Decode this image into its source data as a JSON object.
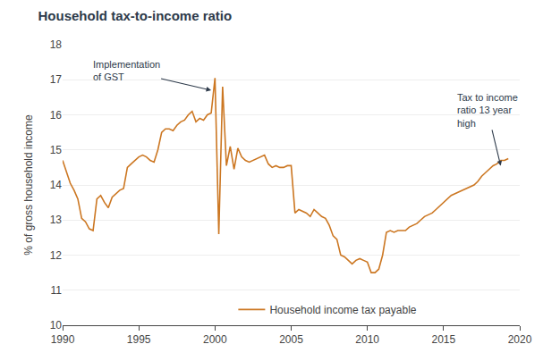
{
  "chart_data": {
    "type": "line",
    "title": "Household tax-to-income ratio",
    "ylabel": "% of gross household income",
    "background_color": "#ffffff",
    "title_color": "#2d3a4a",
    "annotation_color": "#2d3a4a",
    "grid": true,
    "legend": "lower center",
    "xlim": [
      1990,
      2020
    ],
    "ylim": [
      10,
      18
    ],
    "xticks": [
      1990,
      1995,
      2000,
      2005,
      2010,
      2015,
      2020
    ],
    "yticks": [
      10,
      11,
      12,
      13,
      14,
      15,
      16,
      17,
      18
    ],
    "annotations": [
      {
        "text": "Implementation\nof GST",
        "x": 1999.75,
        "y": 16.7
      },
      {
        "text": "Tax to income\nratio 13 year\nhigh",
        "x": 2018.75,
        "y": 14.55
      }
    ],
    "x": [
      1990.0,
      1990.25,
      1990.5,
      1990.75,
      1991.0,
      1991.25,
      1991.5,
      1991.75,
      1992.0,
      1992.25,
      1992.5,
      1992.75,
      1993.0,
      1993.25,
      1993.5,
      1993.75,
      1994.0,
      1994.25,
      1994.5,
      1994.75,
      1995.0,
      1995.25,
      1995.5,
      1995.75,
      1996.0,
      1996.25,
      1996.5,
      1996.75,
      1997.0,
      1997.25,
      1997.5,
      1997.75,
      1998.0,
      1998.25,
      1998.5,
      1998.75,
      1999.0,
      1999.25,
      1999.5,
      1999.75,
      2000.0,
      2000.25,
      2000.5,
      2000.75,
      2001.0,
      2001.25,
      2001.5,
      2001.75,
      2002.0,
      2002.25,
      2002.5,
      2002.75,
      2003.0,
      2003.25,
      2003.5,
      2003.75,
      2004.0,
      2004.25,
      2004.5,
      2004.75,
      2005.0,
      2005.25,
      2005.5,
      2005.75,
      2006.0,
      2006.25,
      2006.5,
      2006.75,
      2007.0,
      2007.25,
      2007.5,
      2007.75,
      2008.0,
      2008.25,
      2008.5,
      2008.75,
      2009.0,
      2009.25,
      2009.5,
      2009.75,
      2010.0,
      2010.25,
      2010.5,
      2010.75,
      2011.0,
      2011.25,
      2011.5,
      2011.75,
      2012.0,
      2012.25,
      2012.5,
      2012.75,
      2013.0,
      2013.25,
      2013.5,
      2013.75,
      2014.0,
      2014.25,
      2014.5,
      2014.75,
      2015.0,
      2015.25,
      2015.5,
      2015.75,
      2016.0,
      2016.25,
      2016.5,
      2016.75,
      2017.0,
      2017.25,
      2017.5,
      2017.75,
      2018.0,
      2018.25,
      2018.5,
      2018.75,
      2019.0,
      2019.25
    ],
    "series": [
      {
        "name": "Household income tax payable",
        "color": "#CC7722",
        "values": [
          14.7,
          14.35,
          14.05,
          13.85,
          13.6,
          13.05,
          12.95,
          12.75,
          12.7,
          13.6,
          13.7,
          13.5,
          13.35,
          13.65,
          13.75,
          13.85,
          13.9,
          14.5,
          14.6,
          14.7,
          14.8,
          14.85,
          14.8,
          14.7,
          14.65,
          15.0,
          15.5,
          15.6,
          15.6,
          15.55,
          15.7,
          15.8,
          15.85,
          16.0,
          16.1,
          15.8,
          15.9,
          15.85,
          16.0,
          16.05,
          17.05,
          12.6,
          16.8,
          14.55,
          15.1,
          14.45,
          15.05,
          14.8,
          14.7,
          14.65,
          14.7,
          14.75,
          14.8,
          14.85,
          14.6,
          14.5,
          14.55,
          14.5,
          14.5,
          14.55,
          14.55,
          13.2,
          13.3,
          13.25,
          13.2,
          13.1,
          13.3,
          13.2,
          13.1,
          13.05,
          12.85,
          12.55,
          12.45,
          12.0,
          11.95,
          11.85,
          11.75,
          11.85,
          11.9,
          11.85,
          11.8,
          11.5,
          11.5,
          11.6,
          12.0,
          12.65,
          12.7,
          12.65,
          12.7,
          12.7,
          12.7,
          12.8,
          12.85,
          12.9,
          13.0,
          13.1,
          13.15,
          13.2,
          13.3,
          13.4,
          13.5,
          13.6,
          13.7,
          13.75,
          13.8,
          13.85,
          13.9,
          13.95,
          14.0,
          14.1,
          14.25,
          14.35,
          14.45,
          14.55,
          14.6,
          14.7,
          14.7,
          14.75
        ]
      }
    ]
  }
}
